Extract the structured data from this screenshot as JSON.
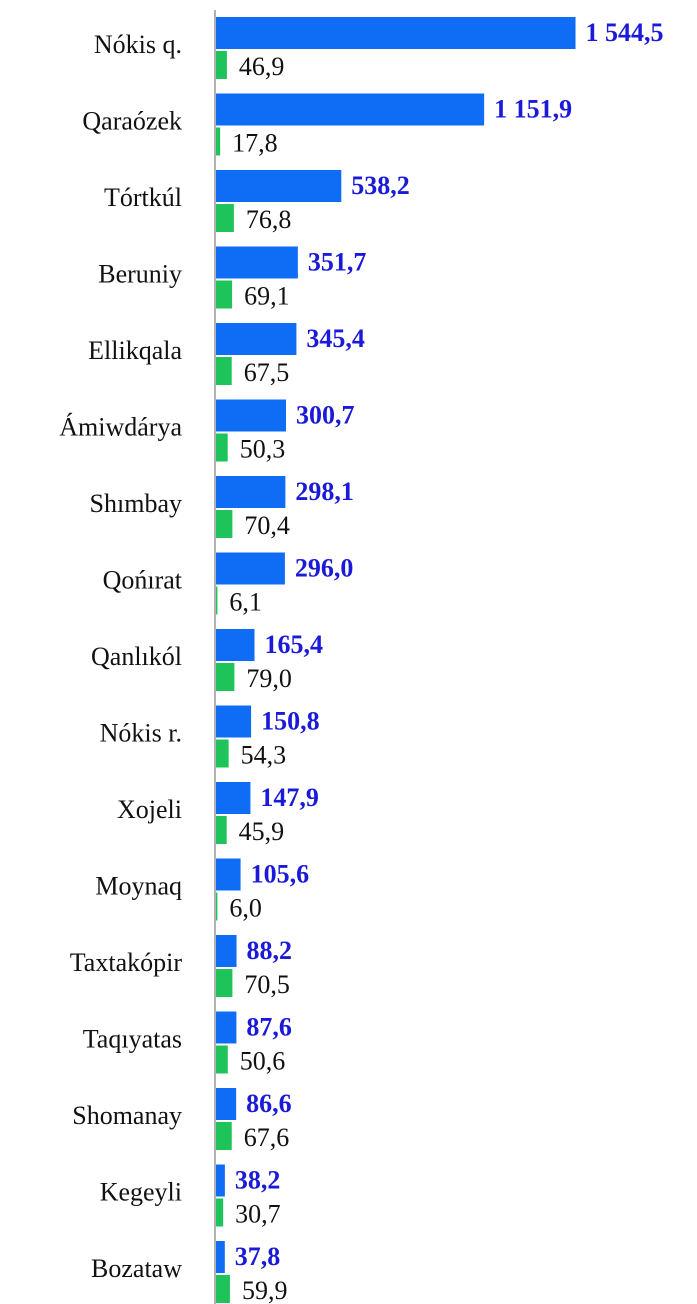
{
  "chart_data": {
    "type": "bar",
    "orientation": "horizontal",
    "categories": [
      "Nókis q.",
      "Qaraózek",
      "Tórtkúl",
      "Beruniy",
      "Ellikqala",
      "Ámiwdárya",
      "Shımbay",
      "Qońırat",
      "Qanlıkól",
      "Nókis r.",
      "Xojeli",
      "Moynaq",
      "Taxtakópir",
      "Taqıyatas",
      "Shomanay",
      "Kegeyli",
      "Bozataw"
    ],
    "series": [
      {
        "color": "#0f6cf5",
        "values": [
          1544.5,
          1151.9,
          538.2,
          351.7,
          345.4,
          300.7,
          298.1,
          296.0,
          165.4,
          150.8,
          147.9,
          105.6,
          88.2,
          87.6,
          86.6,
          38.2,
          37.8
        ],
        "value_labels": [
          "1 544,5",
          "1 151,9",
          "538,2",
          "351,7",
          "345,4",
          "300,7",
          "298,1",
          "296,0",
          "165,4",
          "150,8",
          "147,9",
          "105,6",
          "88,2",
          "87,6",
          "86,6",
          "38,2",
          "37,8"
        ]
      },
      {
        "color": "#1ec45a",
        "values": [
          46.9,
          17.8,
          76.8,
          69.1,
          67.5,
          50.3,
          70.4,
          6.1,
          79.0,
          54.3,
          45.9,
          6.0,
          70.5,
          50.6,
          67.6,
          30.7,
          59.9
        ],
        "value_labels": [
          "46,9",
          "17,8",
          "76,8",
          "69,1",
          "67,5",
          "50,3",
          "70,4",
          "6,1",
          "79,0",
          "54,3",
          "45,9",
          "6,0",
          "70,5",
          "50,6",
          "67,6",
          "30,7",
          "59,9"
        ]
      }
    ],
    "xlim": [
      0,
      1800
    ]
  }
}
